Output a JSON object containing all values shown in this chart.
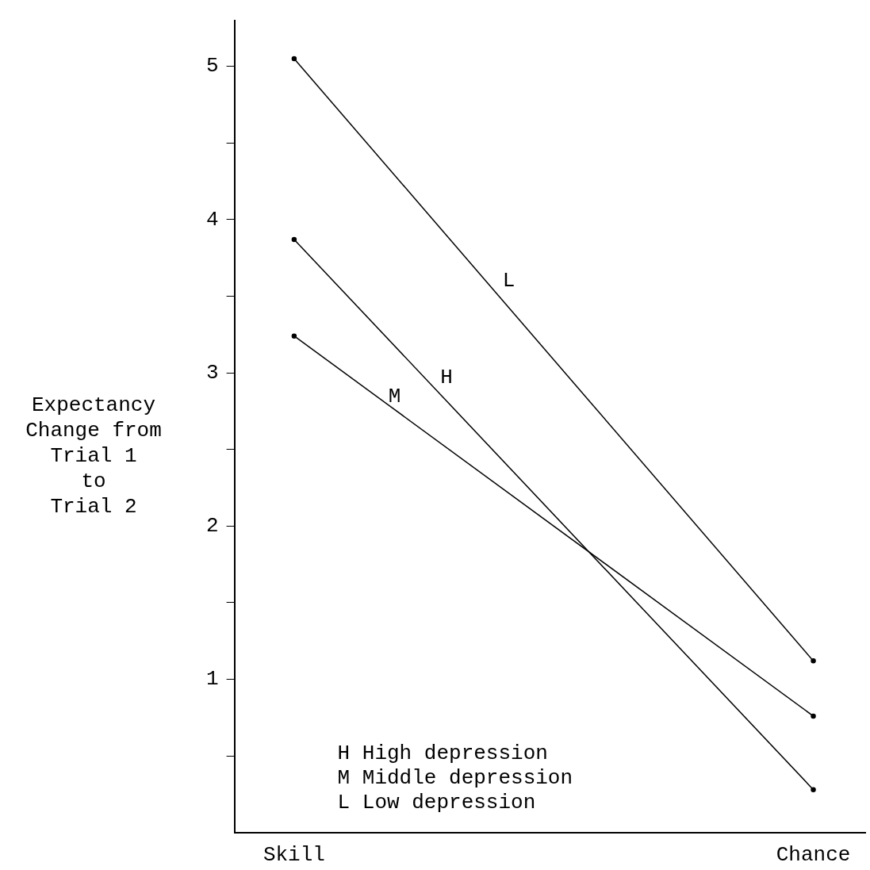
{
  "chart_data": {
    "type": "line",
    "ylabel": "Expectancy\nChange from\nTrial 1\nto\nTrial 2",
    "categories": [
      "Skill",
      "Chance"
    ],
    "series": [
      {
        "name": "L",
        "color": "#000000",
        "values": [
          5.05,
          1.12
        ]
      },
      {
        "name": "H",
        "color": "#000000",
        "values": [
          3.87,
          0.28
        ]
      },
      {
        "name": "M",
        "color": "#000000",
        "values": [
          3.24,
          0.76
        ]
      }
    ],
    "ylim": [
      0,
      5.3
    ],
    "yticks": [
      {
        "value": 0.5,
        "label": null
      },
      1,
      {
        "value": 1.5,
        "label": null
      },
      2,
      {
        "value": 2.5,
        "label": null
      },
      3,
      {
        "value": 3.5,
        "label": null
      },
      4,
      {
        "value": 4.5,
        "label": null
      },
      5
    ],
    "annotations": [
      "H High depression",
      "M Middle depression",
      "L Low depression"
    ],
    "grid": false,
    "legend": false,
    "marker": "circle",
    "line_style": "solid"
  }
}
